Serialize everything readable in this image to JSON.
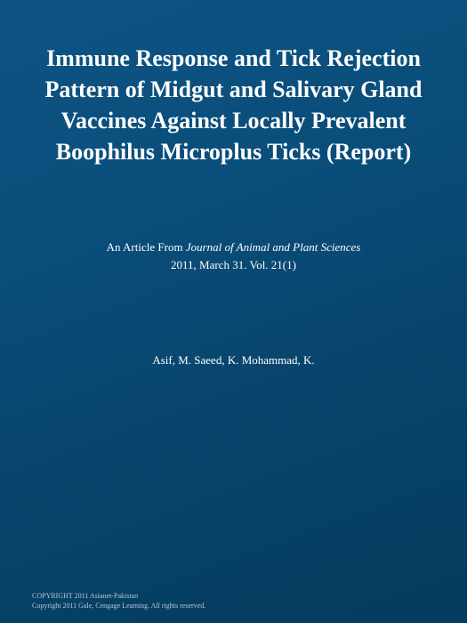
{
  "cover": {
    "background_gradient": [
      "#0d5484",
      "#0a4d7a",
      "#074268",
      "#053b5e"
    ],
    "title": "Immune Response and Tick Rejection Pattern of Midgut and Salivary Gland Vaccines Against Locally Prevalent Boophilus Microplus Ticks (Report)",
    "title_color": "#ffffff",
    "title_fontsize": 26,
    "subtitle_prefix": "An Article From ",
    "journal_name": "Journal of Animal and Plant Sciences",
    "issue_line": "2011, March 31. Vol. 21(1)",
    "subtitle_fontsize": 13,
    "authors": "Asif, M. Saeed, K. Mohammad, K.",
    "authors_fontsize": 13,
    "copyright_line1": "COPYRIGHT 2011 Asianet-Pakistan",
    "copyright_line2": "Copyright 2011 Gale, Cengage Learning. All rights reserved.",
    "copyright_color": "#b8c8d4",
    "copyright_fontsize": 8
  }
}
